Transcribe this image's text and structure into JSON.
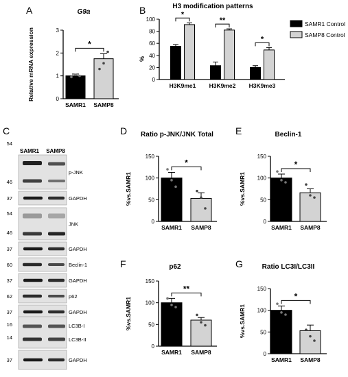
{
  "figure": {
    "panel_letters": [
      "A",
      "B",
      "C",
      "D",
      "E",
      "F",
      "G"
    ],
    "colors": {
      "samr1": "#000000",
      "samp8": "#d3d3d3",
      "axis": "#000000"
    }
  },
  "blot": {
    "lane_labels": [
      "SAMR1",
      "SAMP8"
    ],
    "rows": [
      {
        "mw": [
          "54",
          "46"
        ],
        "label": "p-JNK"
      },
      {
        "mw": [
          "37"
        ],
        "label": "GAPDH"
      },
      {
        "mw": [
          "54",
          "46"
        ],
        "label": "JNK"
      },
      {
        "mw": [
          "37"
        ],
        "label": "GAPDH"
      },
      {
        "mw": [
          "60"
        ],
        "label": "Beclin-1"
      },
      {
        "mw": [
          "37"
        ],
        "label": "GAPDH"
      },
      {
        "mw": [
          "62"
        ],
        "label": "p62"
      },
      {
        "mw": [
          "37"
        ],
        "label": "GAPDH"
      },
      {
        "mw": [
          "16",
          "14"
        ],
        "labels": [
          "LC3B-I",
          "LC3B-II"
        ]
      },
      {
        "mw": [
          "37"
        ],
        "label": "GAPDH"
      }
    ]
  },
  "chart_data": [
    {
      "panel": "A",
      "type": "bar",
      "title": "G9a",
      "ylabel": "Relative mRNA expression",
      "categories": [
        "SAMR1",
        "SAMP8"
      ],
      "values": [
        1.0,
        1.75
      ],
      "errors": [
        0.08,
        0.22
      ],
      "points": [
        [
          0.95,
          1.05,
          1.0
        ],
        [
          1.3,
          1.55,
          2.05
        ]
      ],
      "ylim": [
        0,
        3
      ],
      "yticks": [
        "0",
        "1",
        "2",
        "3"
      ],
      "significance": "*"
    },
    {
      "panel": "B",
      "type": "bar",
      "title": "H3 modification patterns",
      "ylabel": "%",
      "categories": [
        "H3K9me1",
        "H3K9me2",
        "H3K9me3"
      ],
      "series": [
        {
          "name": "SAMR1 Control",
          "values": [
            55,
            23,
            20
          ],
          "errors": [
            3,
            6,
            3
          ]
        },
        {
          "name": "SAMP8 Control",
          "values": [
            91,
            82,
            49
          ],
          "errors": [
            3,
            2,
            4
          ]
        }
      ],
      "ylim": [
        0,
        100
      ],
      "yticks": [
        "0",
        "20",
        "40",
        "60",
        "80",
        "100"
      ],
      "significance": [
        "*",
        "**",
        "*"
      ],
      "legend": "right"
    },
    {
      "panel": "D",
      "type": "bar",
      "title": "Ratio p-JNK/JNK Total",
      "ylabel": "%vs.SAMR1",
      "categories": [
        "SAMR1",
        "SAMP8"
      ],
      "values": [
        100,
        53
      ],
      "errors": [
        13,
        13
      ],
      "points": [
        [
          120,
          95,
          80
        ],
        [
          70,
          55,
          30
        ]
      ],
      "ylim": [
        0,
        150
      ],
      "yticks": [
        "0",
        "50",
        "100",
        "150"
      ],
      "significance": "*"
    },
    {
      "panel": "E",
      "type": "bar",
      "title": "Beclin-1",
      "ylabel": "%vs.SAMR1",
      "categories": [
        "SAMR1",
        "SAMP8"
      ],
      "values": [
        100,
        66
      ],
      "errors": [
        9,
        9
      ],
      "points": [
        [
          115,
          95,
          90
        ],
        [
          85,
          60,
          55
        ]
      ],
      "ylim": [
        0,
        150
      ],
      "yticks": [
        "0",
        "50",
        "100",
        "150"
      ],
      "significance": "*"
    },
    {
      "panel": "F",
      "type": "bar",
      "title": "p62",
      "ylabel": "%vs.SAMR1",
      "categories": [
        "SAMR1",
        "SAMP8"
      ],
      "values": [
        100,
        60
      ],
      "errors": [
        10,
        6
      ],
      "points": [
        [
          110,
          95,
          90
        ],
        [
          72,
          55,
          48
        ]
      ],
      "ylim": [
        0,
        150
      ],
      "yticks": [
        "0",
        "50",
        "100",
        "150"
      ],
      "significance": "**"
    },
    {
      "panel": "G",
      "type": "bar",
      "title": "Ratio LC3I/LC3II",
      "ylabel": "%vs.SAMR1",
      "categories": [
        "SAMR1",
        "SAMP8"
      ],
      "values": [
        100,
        53
      ],
      "errors": [
        10,
        13
      ],
      "points": [
        [
          115,
          95,
          90
        ],
        [
          55,
          40,
          30
        ]
      ],
      "ylim": [
        0,
        150
      ],
      "yticks": [
        "0",
        "50",
        "100",
        "150"
      ],
      "significance": "*"
    }
  ]
}
